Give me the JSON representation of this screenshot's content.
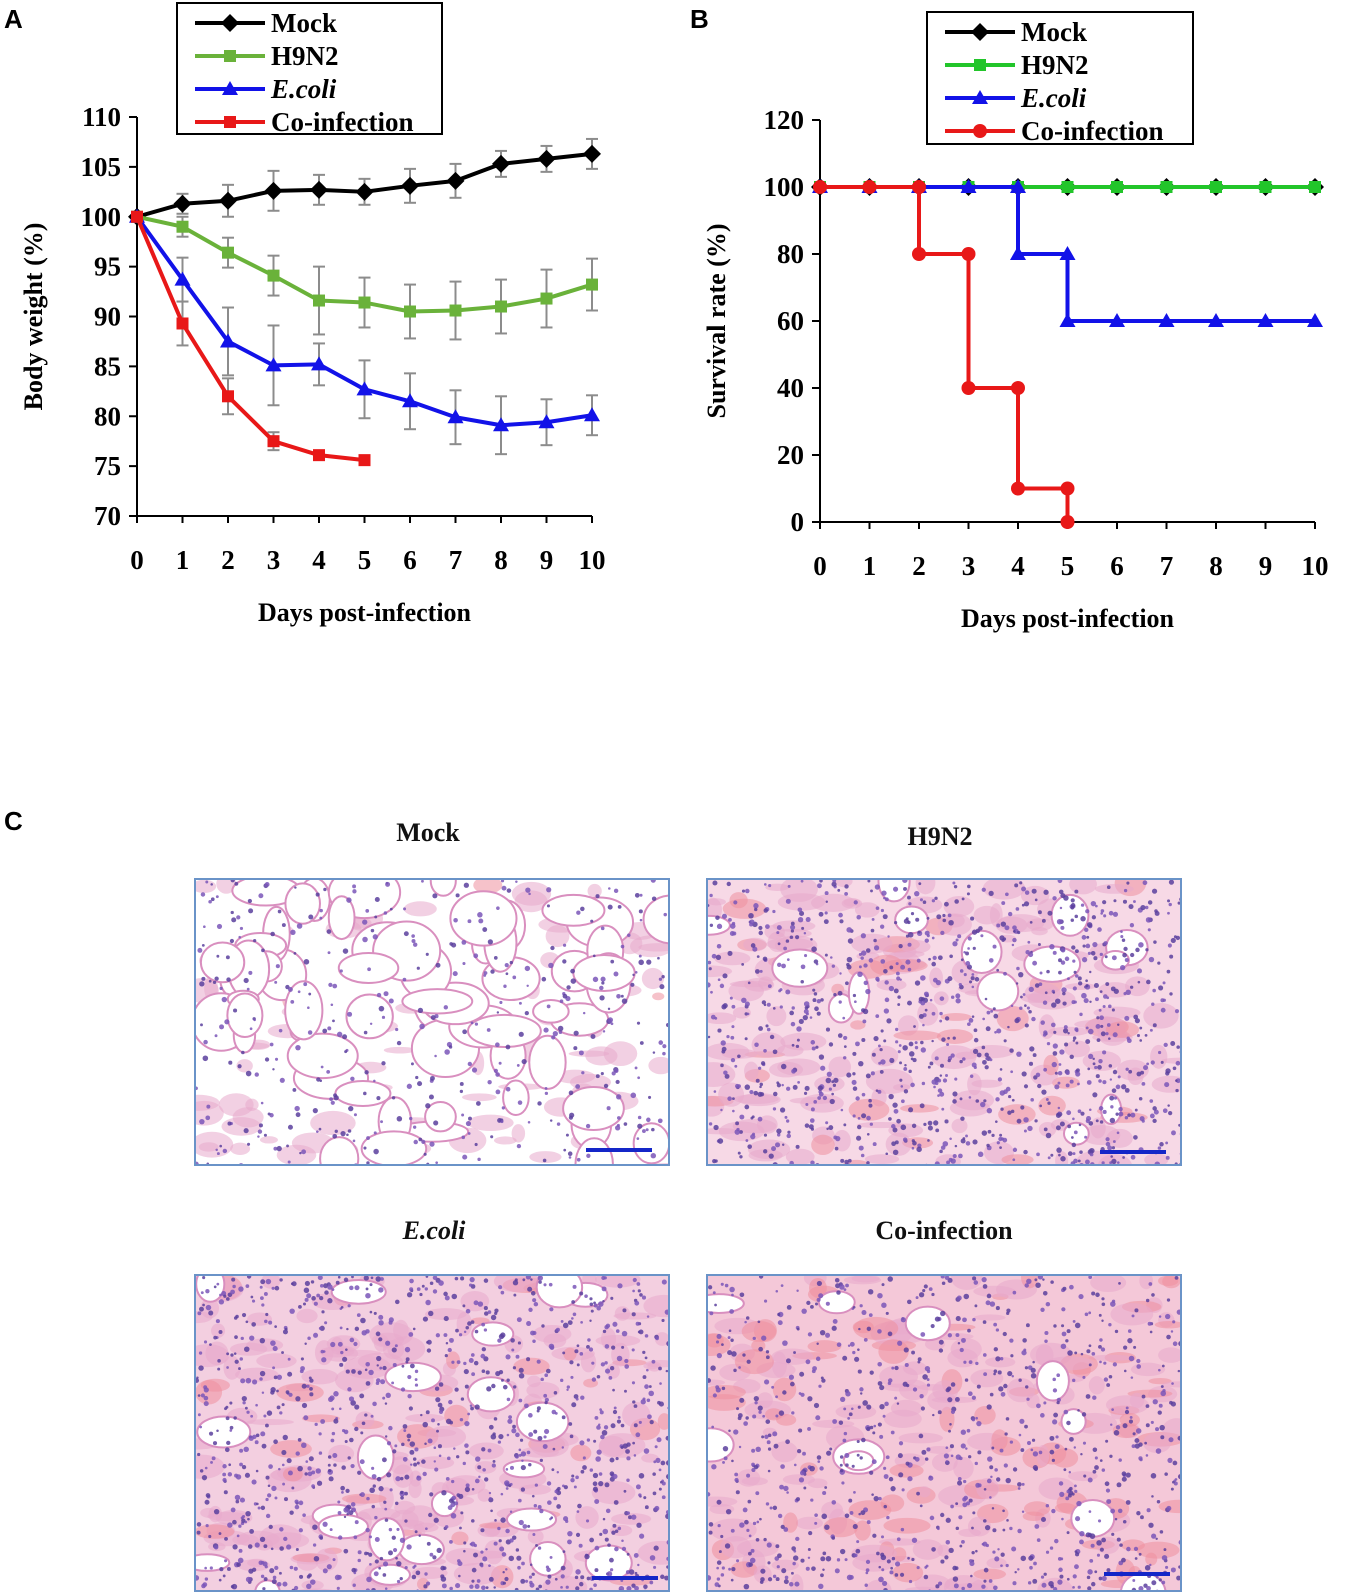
{
  "panels": {
    "a": "A",
    "b": "B",
    "c": "C"
  },
  "colors": {
    "mock": "#000000",
    "h9n2_a": "#6ab23a",
    "h9n2_b": "#22c52a",
    "ecoli": "#1212e8",
    "coinfection": "#e81818",
    "errorbar": "#8c8c8c",
    "histo_border": "#6a93c8",
    "scale_bar": "#1426c8"
  },
  "chart_data": [
    {
      "type": "line",
      "panel": "A",
      "title": "",
      "xlabel": "Days post-infection",
      "ylabel": "Body weight (%)",
      "xlim": [
        0,
        10
      ],
      "ylim": [
        70,
        110
      ],
      "xticks": [
        "0",
        "1",
        "2",
        "3",
        "4",
        "5",
        "6",
        "7",
        "8",
        "9",
        "10"
      ],
      "yticks": [
        "70",
        "75",
        "80",
        "85",
        "90",
        "95",
        "100",
        "105",
        "110"
      ],
      "legend_position": "top",
      "series": [
        {
          "name": "Mock",
          "key": "mock",
          "marker": "diamond",
          "italic": false,
          "x": [
            0,
            1,
            2,
            3,
            4,
            5,
            6,
            7,
            8,
            9,
            10
          ],
          "y": [
            100,
            101.3,
            101.6,
            102.6,
            102.7,
            102.5,
            103.1,
            103.6,
            105.3,
            105.8,
            106.3
          ],
          "err": [
            0,
            1.0,
            1.6,
            2.0,
            1.5,
            1.3,
            1.7,
            1.7,
            1.3,
            1.3,
            1.5
          ]
        },
        {
          "name": "H9N2",
          "key": "h9n2_a",
          "marker": "square",
          "italic": false,
          "x": [
            0,
            1,
            2,
            3,
            4,
            5,
            6,
            7,
            8,
            9,
            10
          ],
          "y": [
            100,
            99.0,
            96.4,
            94.1,
            91.6,
            91.4,
            90.5,
            90.6,
            91.0,
            91.8,
            93.2
          ],
          "err": [
            0,
            1.0,
            1.5,
            2.0,
            3.4,
            2.5,
            2.7,
            2.9,
            2.7,
            2.9,
            2.6
          ]
        },
        {
          "name": "E.coli",
          "key": "ecoli",
          "marker": "triangle",
          "italic": true,
          "x": [
            0,
            1,
            2,
            3,
            4,
            5,
            6,
            7,
            8,
            9,
            10
          ],
          "y": [
            100,
            93.7,
            87.5,
            85.1,
            85.2,
            82.7,
            81.5,
            79.9,
            79.1,
            79.4,
            80.1
          ],
          "err": [
            0,
            2.2,
            3.4,
            4.0,
            2.1,
            2.9,
            2.8,
            2.7,
            2.9,
            2.3,
            2.0
          ]
        },
        {
          "name": "Co-infection",
          "key": "coinfection",
          "marker": "square",
          "italic": false,
          "x": [
            0,
            1,
            2,
            3,
            4,
            5
          ],
          "y": [
            100,
            89.3,
            82.0,
            77.5,
            76.1,
            75.6
          ],
          "err": [
            0,
            2.2,
            1.8,
            0.9,
            0,
            0
          ]
        }
      ]
    },
    {
      "type": "line",
      "panel": "B",
      "title": "",
      "xlabel": "Days post-infection",
      "ylabel": "Survival rate (%)",
      "xlim": [
        0,
        10
      ],
      "ylim": [
        0,
        120
      ],
      "xticks": [
        "0",
        "1",
        "2",
        "3",
        "4",
        "5",
        "6",
        "7",
        "8",
        "9",
        "10"
      ],
      "yticks": [
        "0",
        "20",
        "40",
        "60",
        "80",
        "100",
        "120"
      ],
      "legend_position": "top",
      "step": true,
      "series": [
        {
          "name": "Mock",
          "key": "mock",
          "marker": "diamond",
          "italic": false,
          "x": [
            0,
            1,
            2,
            3,
            4,
            5,
            6,
            7,
            8,
            9,
            10
          ],
          "y": [
            100,
            100,
            100,
            100,
            100,
            100,
            100,
            100,
            100,
            100,
            100
          ]
        },
        {
          "name": "H9N2",
          "key": "h9n2_b",
          "marker": "square",
          "italic": false,
          "x": [
            0,
            1,
            2,
            3,
            4,
            5,
            6,
            7,
            8,
            9,
            10
          ],
          "y": [
            100,
            100,
            100,
            100,
            100,
            100,
            100,
            100,
            100,
            100,
            100
          ]
        },
        {
          "name": "E.coli",
          "key": "ecoli",
          "marker": "triangle",
          "italic": true,
          "x": [
            0,
            1,
            2,
            3,
            4,
            5,
            6,
            7,
            8,
            9,
            10
          ],
          "y": [
            100,
            100,
            100,
            100,
            80,
            60,
            60,
            60,
            60,
            60,
            60
          ]
        },
        {
          "name": "Co-infection",
          "key": "coinfection",
          "marker": "circle",
          "italic": false,
          "x": [
            0,
            1,
            2,
            3,
            4,
            5
          ],
          "y": [
            100,
            100,
            80,
            40,
            10,
            0
          ]
        }
      ]
    }
  ],
  "histology": [
    {
      "title": "Mock",
      "italic": false
    },
    {
      "title": "H9N2",
      "italic": false
    },
    {
      "title": "E.coli",
      "italic": true
    },
    {
      "title": "Co-infection",
      "italic": false
    }
  ]
}
